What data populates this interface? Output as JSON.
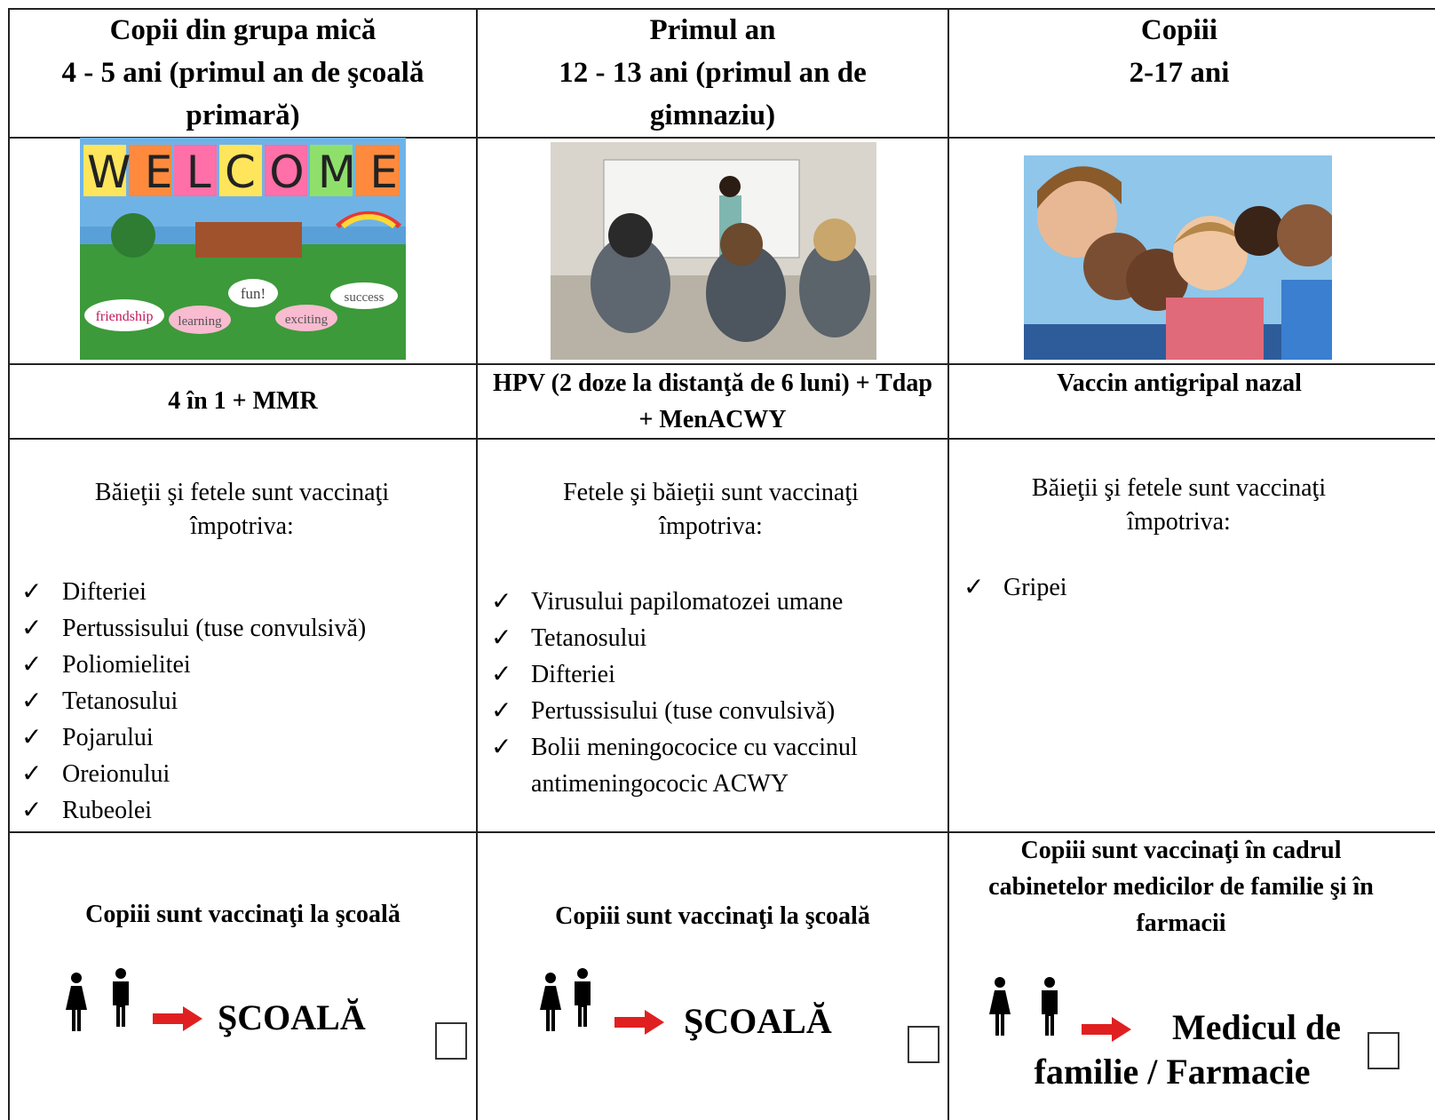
{
  "columns": [
    {
      "title": "Copii din grupa mică",
      "subtitle": "4 - 5 ani (primul an de şcoală primară)",
      "image_texts": [
        "WELCOME",
        "friendship",
        "learning",
        "fun!",
        "exciting",
        "success"
      ],
      "vaccine": "4 în 1 + MMR",
      "intro": "Băieţii şi fetele sunt vaccinaţi împotriva:",
      "items": [
        "Difteriei",
        "Pertussisului (tuse convulsivă)",
        "Poliomielitei",
        "Tetanosului",
        "Pojarului",
        "Oreionului",
        "Rubeolei"
      ],
      "location": "Copiii sunt vaccinaţi la şcoală",
      "destination": "ŞCOALĂ"
    },
    {
      "title": "Primul an",
      "subtitle": "12 - 13 ani (primul an de gimnaziu)",
      "vaccine": "HPV (2 doze la distanţă de 6 luni) + Tdap + MenACWY",
      "intro": "Fetele şi băieţii sunt vaccinaţi împotriva:",
      "items": [
        "Virusului papilomatozei umane",
        "Tetanosului",
        "Difteriei",
        "Pertussisului (tuse convulsivă)",
        "Bolii meningococice cu vaccinul antimeningococic ACWY"
      ],
      "location": "Copiii sunt vaccinaţi la şcoală",
      "destination": "ŞCOALĂ"
    },
    {
      "title": "Copiii",
      "subtitle": "2-17 ani",
      "vaccine": "Vaccin antigripal nazal",
      "intro": "Băieţii şi fetele sunt vaccinaţi împotriva:",
      "items": [
        "Gripei"
      ],
      "location": "Copiii sunt vaccinaţi în cadrul cabinetelor medicilor de familie şi în farmacii",
      "destination": "Medicul de familie / Farmacie"
    }
  ]
}
